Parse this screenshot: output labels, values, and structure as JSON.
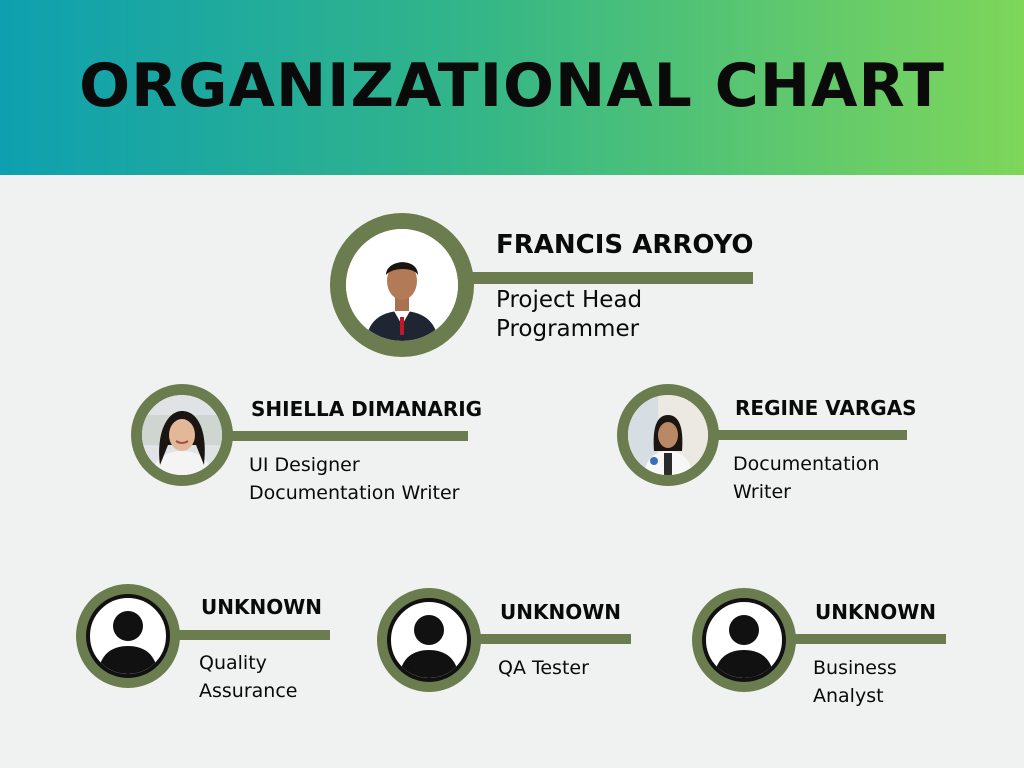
{
  "title": "ORGANIZATIONAL CHART",
  "colors": {
    "accent": "#6b7c4f",
    "header_start": "#0ea0b0",
    "header_end": "#7ed65a",
    "background": "#f0f1f1"
  },
  "members": {
    "head": {
      "name": "FRANCIS ARROYO",
      "role_line1": "Project Head",
      "role_line2": "Programmer",
      "avatar": "photo"
    },
    "left": {
      "name": "SHIELLA DIMANARIG",
      "role_line1": "UI Designer",
      "role_line2": "Documentation Writer",
      "avatar": "photo"
    },
    "right": {
      "name": "REGINE VARGAS",
      "role_line1": "Documentation",
      "role_line2": "Writer",
      "avatar": "photo"
    },
    "bottom1": {
      "name": "UNKNOWN",
      "role_line1": "Quality",
      "role_line2": "Assurance",
      "avatar": "person-icon"
    },
    "bottom2": {
      "name": "UNKNOWN",
      "role_line1": "QA Tester",
      "role_line2": "",
      "avatar": "person-icon"
    },
    "bottom3": {
      "name": "UNKNOWN",
      "role_line1": "Business",
      "role_line2": "Analyst",
      "avatar": "person-icon"
    }
  }
}
